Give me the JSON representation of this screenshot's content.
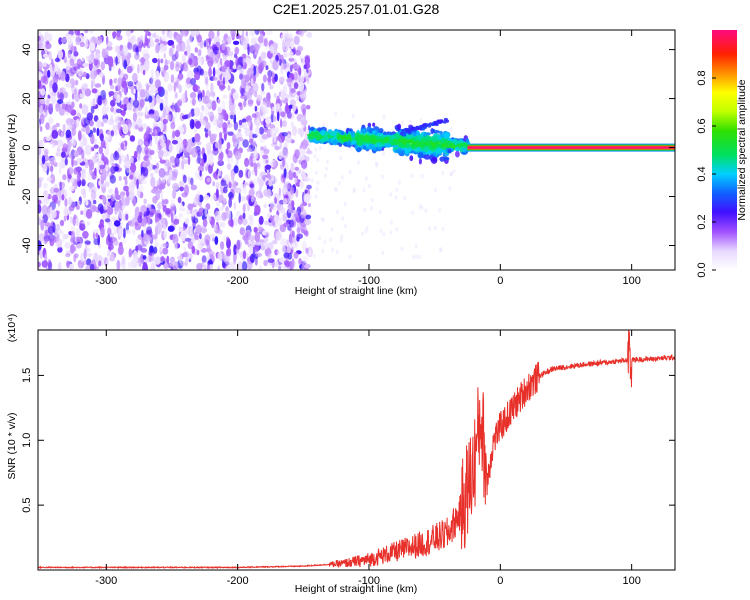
{
  "title": "C2E1.2025.257.01.01.G28",
  "chart_data": [
    {
      "type": "heatmap",
      "xlabel": "Height of straight line (km)",
      "ylabel": "Frequency (Hz)",
      "xlim": [
        -352,
        133
      ],
      "ylim": [
        -50,
        48
      ],
      "xticks": [
        -300,
        -200,
        -100,
        0,
        100
      ],
      "xtick_labels": [
        "-300",
        "-200",
        "-100",
        "0",
        "100"
      ],
      "yticks": [
        -40,
        -20,
        0,
        20,
        40
      ],
      "ytick_labels": [
        "-40",
        "-20",
        "0",
        "20",
        "40"
      ],
      "colorbar": {
        "label": "Normalized spectral amplitude",
        "range": [
          0,
          1
        ],
        "ticks": [
          0.0,
          0.2,
          0.4,
          0.6,
          0.8
        ],
        "tick_labels": [
          "0.0",
          "0.2",
          "0.4",
          "0.6",
          "0.8"
        ]
      },
      "regions": [
        {
          "x_range": [
            -352,
            -145
          ],
          "description": "noise",
          "amplitude": [
            0.05,
            0.25
          ]
        },
        {
          "x_range": [
            -145,
            -25
          ],
          "frequency_hz": [
            -5,
            8
          ],
          "amplitude": [
            0.2,
            0.55
          ]
        },
        {
          "x_range": [
            -25,
            133
          ],
          "frequency_hz": 0,
          "amplitude": 1.0
        }
      ]
    },
    {
      "type": "line",
      "xlabel": "Height of straight line (km)",
      "ylabel": "SNR (10 * v/v)",
      "multiplier": "(x10⁴)",
      "xlim": [
        -352,
        133
      ],
      "ylim": [
        0,
        1.85
      ],
      "xticks": [
        -300,
        -200,
        -100,
        0,
        100
      ],
      "xtick_labels": [
        "-300",
        "-200",
        "-100",
        "0",
        "100"
      ],
      "yticks": [
        0.5,
        1.0,
        1.5
      ],
      "ytick_labels": [
        "0.5",
        "1.0",
        "1.5"
      ],
      "color": "#e8302a",
      "series": [
        {
          "x": [
            -352,
            -300,
            -250,
            -200,
            -150,
            -120,
            -100,
            -80,
            -60,
            -40,
            -30,
            -20,
            -15,
            -10,
            -5,
            0,
            10,
            20,
            30,
            40,
            60,
            80,
            100,
            120,
            133
          ],
          "y": [
            0.02,
            0.02,
            0.02,
            0.02,
            0.03,
            0.05,
            0.08,
            0.14,
            0.2,
            0.28,
            0.45,
            0.8,
            1.2,
            0.7,
            1.0,
            1.1,
            1.25,
            1.4,
            1.5,
            1.55,
            1.58,
            1.6,
            1.62,
            1.63,
            1.64
          ]
        }
      ]
    }
  ]
}
